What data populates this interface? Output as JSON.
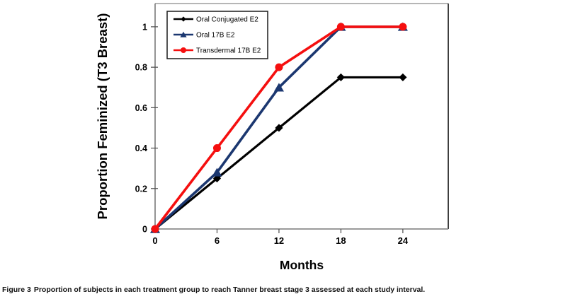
{
  "chart_data": {
    "type": "line",
    "x": [
      0,
      6,
      12,
      18,
      24
    ],
    "series": [
      {
        "name": "Oral Conjugated E2",
        "color": "#000000",
        "marker": "diamond",
        "values": [
          0,
          0.25,
          0.5,
          0.75,
          0.75
        ]
      },
      {
        "name": "Oral 17B E2",
        "color": "#1b3770",
        "marker": "triangle",
        "values": [
          0,
          0.28,
          0.7,
          1,
          1
        ]
      },
      {
        "name": "Transdermal 17B E2",
        "color": "#f50f0f",
        "marker": "circle",
        "values": [
          0,
          0.4,
          0.8,
          1,
          1
        ]
      }
    ],
    "title": "",
    "xlabel": "Months",
    "ylabel": "Proportion Feminized (T3 Breast)",
    "xticks": [
      {
        "v": 0,
        "label": "0"
      },
      {
        "v": 6,
        "label": "6"
      },
      {
        "v": 12,
        "label": "12"
      },
      {
        "v": 18,
        "label": "18"
      },
      {
        "v": 24,
        "label": "24"
      }
    ],
    "yticks": [
      {
        "v": 0,
        "label": "0"
      },
      {
        "v": 0.2,
        "label": "0.2"
      },
      {
        "v": 0.4,
        "label": "0.4"
      },
      {
        "v": 0.6,
        "label": "0.6"
      },
      {
        "v": 0.8,
        "label": "0.8"
      },
      {
        "v": 1,
        "label": "1"
      }
    ],
    "xlim": [
      0,
      28.4
    ],
    "ylim": [
      0,
      1.115
    ],
    "grid": false,
    "legend_position": "top-left-inside",
    "frame_color": "#6e6e6e",
    "tick_color": "#4d4d4d"
  },
  "caption": {
    "label": "Figure 3",
    "text": "Proportion of subjects in each treatment group to reach Tanner breast stage 3 assessed at each study interval."
  }
}
